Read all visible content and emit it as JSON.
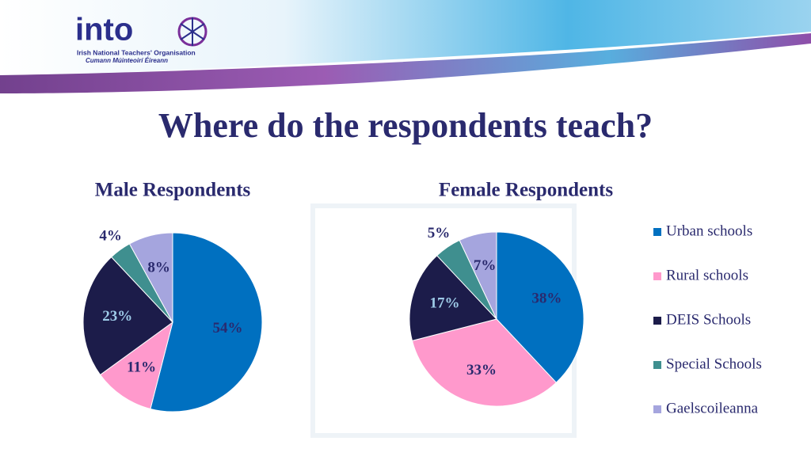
{
  "header": {
    "logo": "into",
    "org": "Irish National Teachers' Organisation",
    "org_irish": "Cumann Múinteoirí Éireann"
  },
  "title": "Where do the respondents teach?",
  "chart_data": [
    {
      "type": "pie",
      "title": "Male Respondents",
      "categories": [
        "Urban schools",
        "Rural schools",
        "DEIS Schools",
        "Special Schools",
        "Gaelscoileanna"
      ],
      "values": [
        54,
        11,
        23,
        4,
        8
      ],
      "value_labels": [
        "54%",
        "11%",
        "23%",
        "4%",
        "8%"
      ],
      "colors": [
        "#0070c0",
        "#ff99cc",
        "#1c1c4a",
        "#3f8f8f",
        "#a5a5de"
      ]
    },
    {
      "type": "pie",
      "title": "Female Respondents",
      "categories": [
        "Urban schools",
        "Rural schools",
        "DEIS Schools",
        "Special Schools",
        "Gaelscoileanna"
      ],
      "values": [
        38,
        33,
        17,
        5,
        7
      ],
      "value_labels": [
        "38%",
        "33%",
        "17%",
        "5%",
        "7%"
      ],
      "colors": [
        "#0070c0",
        "#ff99cc",
        "#1c1c4a",
        "#3f8f8f",
        "#a5a5de"
      ]
    }
  ]
}
